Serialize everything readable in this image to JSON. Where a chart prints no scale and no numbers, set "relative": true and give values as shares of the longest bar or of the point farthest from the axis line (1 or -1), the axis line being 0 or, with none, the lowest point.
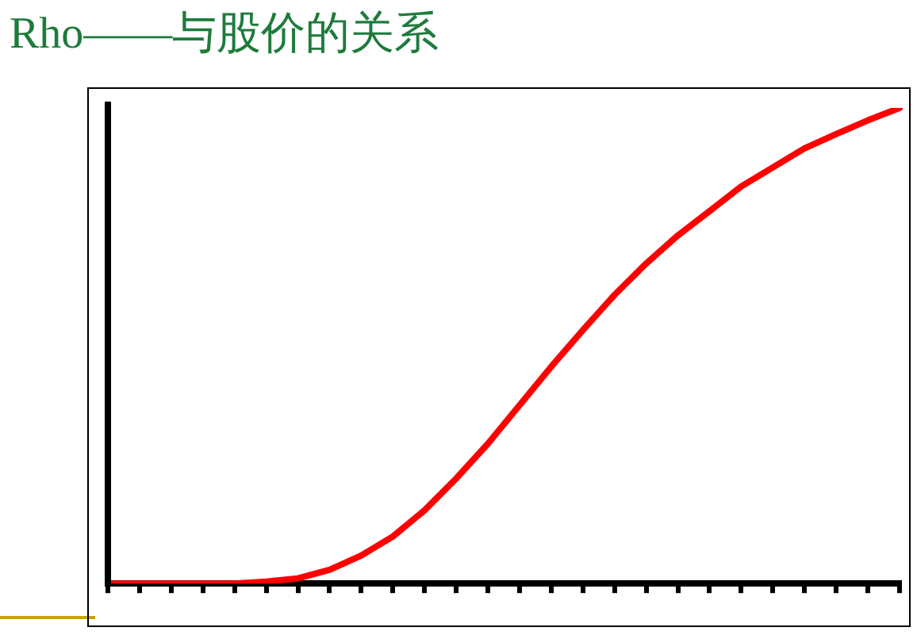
{
  "chart_data": {
    "type": "line",
    "title": "Rho——与股价的关系",
    "relative": true,
    "grid": false,
    "legend": false,
    "marker": "none",
    "line_style": "solid",
    "categories": [
      null,
      null,
      null,
      null,
      null,
      null,
      null,
      null,
      null,
      null,
      null,
      null,
      null,
      null,
      null,
      null,
      null,
      null,
      null,
      null,
      null,
      null,
      null,
      null,
      null,
      null
    ],
    "series": [
      {
        "color": "#ff0000",
        "values": [
          0,
          0,
          0,
          0,
          0,
          0.004,
          0.011,
          0.029,
          0.059,
          0.099,
          0.154,
          0.221,
          0.294,
          0.375,
          0.456,
          0.533,
          0.607,
          0.673,
          0.732,
          0.783,
          0.835,
          0.875,
          0.915,
          0.945,
          0.974,
          1
        ]
      }
    ]
  }
}
